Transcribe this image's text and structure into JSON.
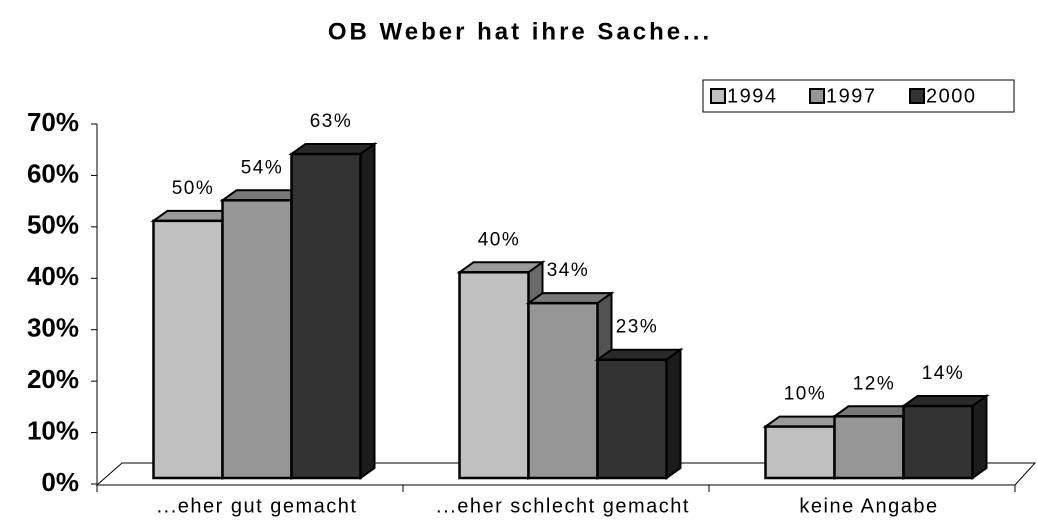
{
  "chart_data": {
    "type": "bar3d",
    "title": "OB Weber hat ihre Sache...",
    "categories": [
      "...eher gut gemacht",
      "...eher schlecht gemacht",
      "keine Angabe"
    ],
    "series": [
      {
        "name": "1994",
        "color": "#c0c0c0",
        "values": [
          50,
          40,
          10
        ],
        "value_labels": [
          "50%",
          "40%",
          "10%"
        ]
      },
      {
        "name": "1997",
        "color": "#969696",
        "values": [
          54,
          34,
          12
        ],
        "value_labels": [
          "54%",
          "34%",
          "12%"
        ]
      },
      {
        "name": "2000",
        "color": "#333333",
        "values": [
          63,
          23,
          14
        ],
        "value_labels": [
          "63%",
          "23%",
          "14%"
        ]
      }
    ],
    "ylim": [
      0,
      70
    ],
    "yticks": [
      {
        "value": 0,
        "label": "0%"
      },
      {
        "value": 10,
        "label": "10%"
      },
      {
        "value": 20,
        "label": "20%"
      },
      {
        "value": 30,
        "label": "30%"
      },
      {
        "value": 40,
        "label": "40%"
      },
      {
        "value": 50,
        "label": "50%"
      },
      {
        "value": 60,
        "label": "60%"
      },
      {
        "value": 70,
        "label": "70%"
      }
    ],
    "legend": "top-right"
  }
}
